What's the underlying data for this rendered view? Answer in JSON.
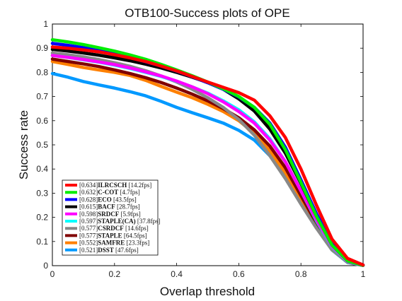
{
  "chart_data": {
    "type": "line",
    "title": "OTB100-Success plots of OPE",
    "xlabel": "Overlap threshold",
    "ylabel": "Success rate",
    "xlim": [
      0,
      1
    ],
    "ylim": [
      0,
      1
    ],
    "x_ticks": [
      "0",
      "0.2",
      "0.4",
      "0.6",
      "0.8",
      "1"
    ],
    "y_ticks": [
      "0",
      "0.1",
      "0.2",
      "0.3",
      "0.4",
      "0.5",
      "0.6",
      "0.7",
      "0.8",
      "0.9",
      "1"
    ],
    "grid": false,
    "legend_position": "bottom-left",
    "x": [
      0,
      0.05,
      0.1,
      0.15,
      0.2,
      0.25,
      0.3,
      0.35,
      0.4,
      0.45,
      0.5,
      0.55,
      0.6,
      0.65,
      0.7,
      0.75,
      0.8,
      0.85,
      0.9,
      0.95,
      1.0
    ],
    "series": [
      {
        "legend_score": "[0.634]",
        "legend_name": "ILRCSCH",
        "legend_fps": "[14.2fps]",
        "color": "#ff0000",
        "values": [
          0.905,
          0.9,
          0.893,
          0.885,
          0.873,
          0.86,
          0.845,
          0.826,
          0.806,
          0.783,
          0.76,
          0.738,
          0.716,
          0.685,
          0.62,
          0.53,
          0.4,
          0.25,
          0.11,
          0.03,
          0.003
        ]
      },
      {
        "legend_score": "[0.632]",
        "legend_name": "C-COT",
        "legend_fps": "[4.7fps]",
        "color": "#00ee00",
        "values": [
          0.935,
          0.926,
          0.915,
          0.902,
          0.888,
          0.872,
          0.854,
          0.833,
          0.81,
          0.786,
          0.76,
          0.732,
          0.7,
          0.655,
          0.585,
          0.48,
          0.345,
          0.205,
          0.085,
          0.02,
          0.002
        ]
      },
      {
        "legend_score": "[0.628]",
        "legend_name": "ECO",
        "legend_fps": "[43.5fps]",
        "color": "#0000ff",
        "values": [
          0.92,
          0.912,
          0.902,
          0.89,
          0.876,
          0.861,
          0.844,
          0.826,
          0.805,
          0.782,
          0.757,
          0.73,
          0.698,
          0.655,
          0.59,
          0.49,
          0.355,
          0.215,
          0.095,
          0.025,
          0.003
        ]
      },
      {
        "legend_score": "[0.615]",
        "legend_name": "BACF",
        "legend_fps": "[28.7fps]",
        "color": "#000000",
        "values": [
          0.895,
          0.888,
          0.88,
          0.871,
          0.86,
          0.848,
          0.834,
          0.818,
          0.8,
          0.78,
          0.758,
          0.73,
          0.69,
          0.64,
          0.565,
          0.465,
          0.34,
          0.205,
          0.09,
          0.02,
          0.002
        ]
      },
      {
        "legend_score": "[0.598]",
        "legend_name": "SRDCF",
        "legend_fps": "[5.9fps]",
        "color": "#ff00ff",
        "values": [
          0.87,
          0.862,
          0.853,
          0.843,
          0.832,
          0.818,
          0.802,
          0.785,
          0.764,
          0.74,
          0.712,
          0.678,
          0.638,
          0.59,
          0.52,
          0.43,
          0.31,
          0.19,
          0.08,
          0.018,
          0.002
        ]
      },
      {
        "legend_score": "[0.597]",
        "legend_name": "STAPLE(CA)",
        "legend_fps": "[37.8fps]",
        "color": "#00ffff",
        "values": [
          0.87,
          0.862,
          0.852,
          0.842,
          0.83,
          0.816,
          0.8,
          0.783,
          0.763,
          0.74,
          0.714,
          0.682,
          0.645,
          0.595,
          0.525,
          0.43,
          0.31,
          0.185,
          0.078,
          0.017,
          0.002
        ]
      },
      {
        "legend_score": "[0.577]",
        "legend_name": "CSRDCF",
        "legend_fps": "[14.6fps]",
        "color": "#888888",
        "values": [
          0.88,
          0.873,
          0.864,
          0.853,
          0.84,
          0.825,
          0.807,
          0.785,
          0.76,
          0.73,
          0.695,
          0.655,
          0.605,
          0.54,
          0.455,
          0.36,
          0.255,
          0.155,
          0.065,
          0.015,
          0.001
        ]
      },
      {
        "legend_score": "[0.577]",
        "legend_name": "STAPLE",
        "legend_fps": "[64.5fps]",
        "color": "#800000",
        "values": [
          0.855,
          0.845,
          0.835,
          0.824,
          0.81,
          0.795,
          0.778,
          0.758,
          0.735,
          0.71,
          0.682,
          0.65,
          0.612,
          0.562,
          0.495,
          0.405,
          0.29,
          0.175,
          0.072,
          0.015,
          0.001
        ]
      },
      {
        "legend_score": "[0.552]",
        "legend_name": "SAMFRE",
        "legend_fps": "[23.3fps]",
        "color": "#ff8000",
        "values": [
          0.845,
          0.833,
          0.82,
          0.81,
          0.8,
          0.787,
          0.767,
          0.742,
          0.718,
          0.695,
          0.668,
          0.638,
          0.6,
          0.548,
          0.475,
          0.385,
          0.275,
          0.165,
          0.068,
          0.014,
          0.001
        ]
      },
      {
        "legend_score": "[0.521]",
        "legend_name": "DSST",
        "legend_fps": "[47.6fps]",
        "color": "#0099ff",
        "values": [
          0.795,
          0.78,
          0.762,
          0.748,
          0.735,
          0.72,
          0.703,
          0.68,
          0.655,
          0.633,
          0.612,
          0.59,
          0.56,
          0.52,
          0.455,
          0.37,
          0.265,
          0.16,
          0.065,
          0.013,
          0.001
        ]
      }
    ]
  }
}
